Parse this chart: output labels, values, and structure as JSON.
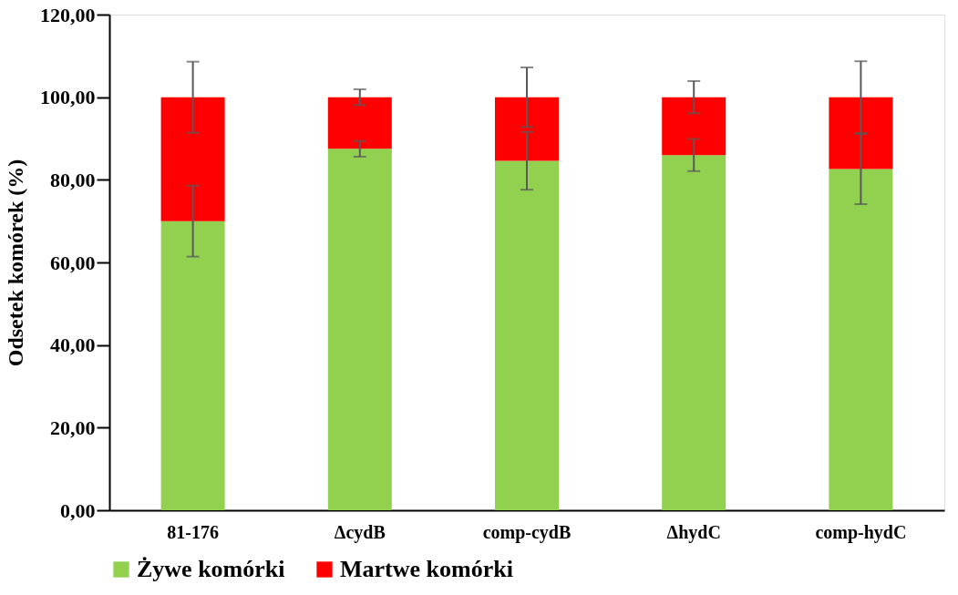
{
  "chart_data": {
    "type": "bar",
    "stacked": true,
    "ylabel": "Odsetek komórek (%)",
    "categories": [
      "81-176",
      "ΔcydB",
      "comp-cydB",
      "ΔhydC",
      "comp-hydC"
    ],
    "series": [
      {
        "name": "Żywe komórki",
        "color": "#92d050",
        "values": [
          70.0,
          87.5,
          84.6,
          86.0,
          82.6
        ],
        "errors": [
          8.6,
          1.9,
          7.0,
          3.9,
          8.5
        ]
      },
      {
        "name": "Martwe komórki",
        "color": "#ff0000",
        "values": [
          30.0,
          12.5,
          15.4,
          14.0,
          17.4
        ],
        "errors": [
          8.6,
          1.9,
          7.2,
          3.9,
          8.7
        ]
      }
    ],
    "ylim": [
      0,
      120
    ],
    "yticks": [
      {
        "value": 0,
        "label": "0,00"
      },
      {
        "value": 20,
        "label": "20,00"
      },
      {
        "value": 40,
        "label": "40,00"
      },
      {
        "value": 60,
        "label": "60,00"
      },
      {
        "value": 80,
        "label": "80,00"
      },
      {
        "value": 100,
        "label": "100,00"
      },
      {
        "value": 120,
        "label": "120,00"
      }
    ],
    "grid": false,
    "legend": "bottom"
  }
}
